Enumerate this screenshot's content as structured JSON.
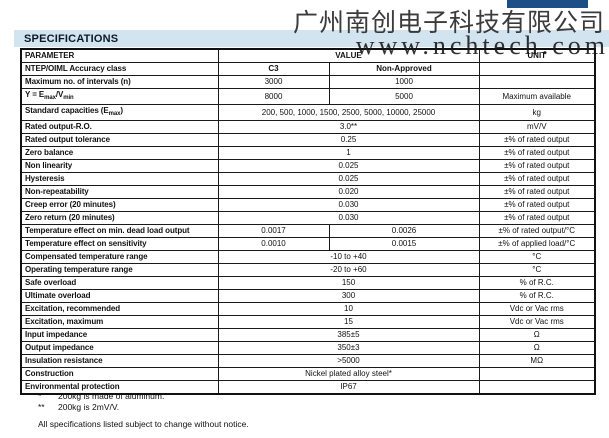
{
  "watermark": {
    "company": "广州南创电子科技有限公司",
    "url": "www.nchtech.com"
  },
  "header": {
    "accent_bar_color": "#1d4f87"
  },
  "section": {
    "title": "SPECIFICATIONS",
    "band_color": "#d2e4f0"
  },
  "table": {
    "columns": {
      "parameter": "PARAMETER",
      "value": "VALUE",
      "unit": "UNIT"
    },
    "rows": [
      {
        "param": "NTEP/OIML Accuracy class",
        "values": [
          "C3",
          "Non-Approved"
        ],
        "emphasis": true,
        "unit": ""
      },
      {
        "param": "Maximum no. of intervals (n)",
        "values": [
          "3000",
          "1000"
        ],
        "unit": ""
      },
      {
        "param": "Y = E[max]/V[min]",
        "values": [
          "8000",
          "5000"
        ],
        "unit": "Maximum available"
      },
      {
        "param": "Standard capacities (E[max])",
        "value": "200, 500, 1000, 1500, 2500, 5000, 10000, 25000",
        "unit": "kg"
      },
      {
        "param": "Rated output-R.O.",
        "value": "3.0**",
        "unit": "mV/V"
      },
      {
        "param": "Rated output tolerance",
        "value": "0.25",
        "unit": "±% of rated output"
      },
      {
        "param": "Zero balance",
        "value": "1",
        "unit": "±% of rated output"
      },
      {
        "param": "Non linearity",
        "value": "0.025",
        "unit": "±% of rated output"
      },
      {
        "param": "Hysteresis",
        "value": "0.025",
        "unit": "±% of rated output"
      },
      {
        "param": "Non-repeatability",
        "value": "0.020",
        "unit": "±% of rated output"
      },
      {
        "param": "Creep error (20 minutes)",
        "value": "0.030",
        "unit": "±% of rated output"
      },
      {
        "param": "Zero return (20 minutes)",
        "value": "0.030",
        "unit": "±% of rated output"
      },
      {
        "param": "Temperature effect on min. dead load output",
        "values": [
          "0.0017",
          "0.0026"
        ],
        "unit": "±% of rated output/°C"
      },
      {
        "param": "Temperature effect on sensitivity",
        "values": [
          "0.0010",
          "0.0015"
        ],
        "unit": "±% of applied load/°C"
      },
      {
        "param": "Compensated temperature range",
        "value": "-10 to +40",
        "unit": "°C"
      },
      {
        "param": "Operating temperature range",
        "value": "-20 to +60",
        "unit": "°C"
      },
      {
        "param": "Safe overload",
        "value": "150",
        "unit": "% of R.C."
      },
      {
        "param": "Ultimate overload",
        "value": "300",
        "unit": "% of R.C."
      },
      {
        "param": "Excitation, recommended",
        "value": "10",
        "unit": "Vdc or Vac rms"
      },
      {
        "param": "Excitation, maximum",
        "value": "15",
        "unit": "Vdc or Vac rms"
      },
      {
        "param": "Input impedance",
        "value": "385±5",
        "unit": "Ω"
      },
      {
        "param": "Output impedance",
        "value": "350±3",
        "unit": "Ω"
      },
      {
        "param": "Insulation resistance",
        "value": ">5000",
        "unit": "MΩ"
      },
      {
        "param": "Construction",
        "value": "Nickel plated alloy steel*",
        "unit": ""
      },
      {
        "param": "Environmental protection",
        "value": "IP67",
        "unit": ""
      }
    ]
  },
  "footnotes": [
    {
      "marker": "*",
      "text": "200kg is made of aluminum."
    },
    {
      "marker": "**",
      "text": "200kg is 2mV/V."
    }
  ],
  "footer": {
    "disclaimer": "All specifications listed subject to change without notice."
  }
}
